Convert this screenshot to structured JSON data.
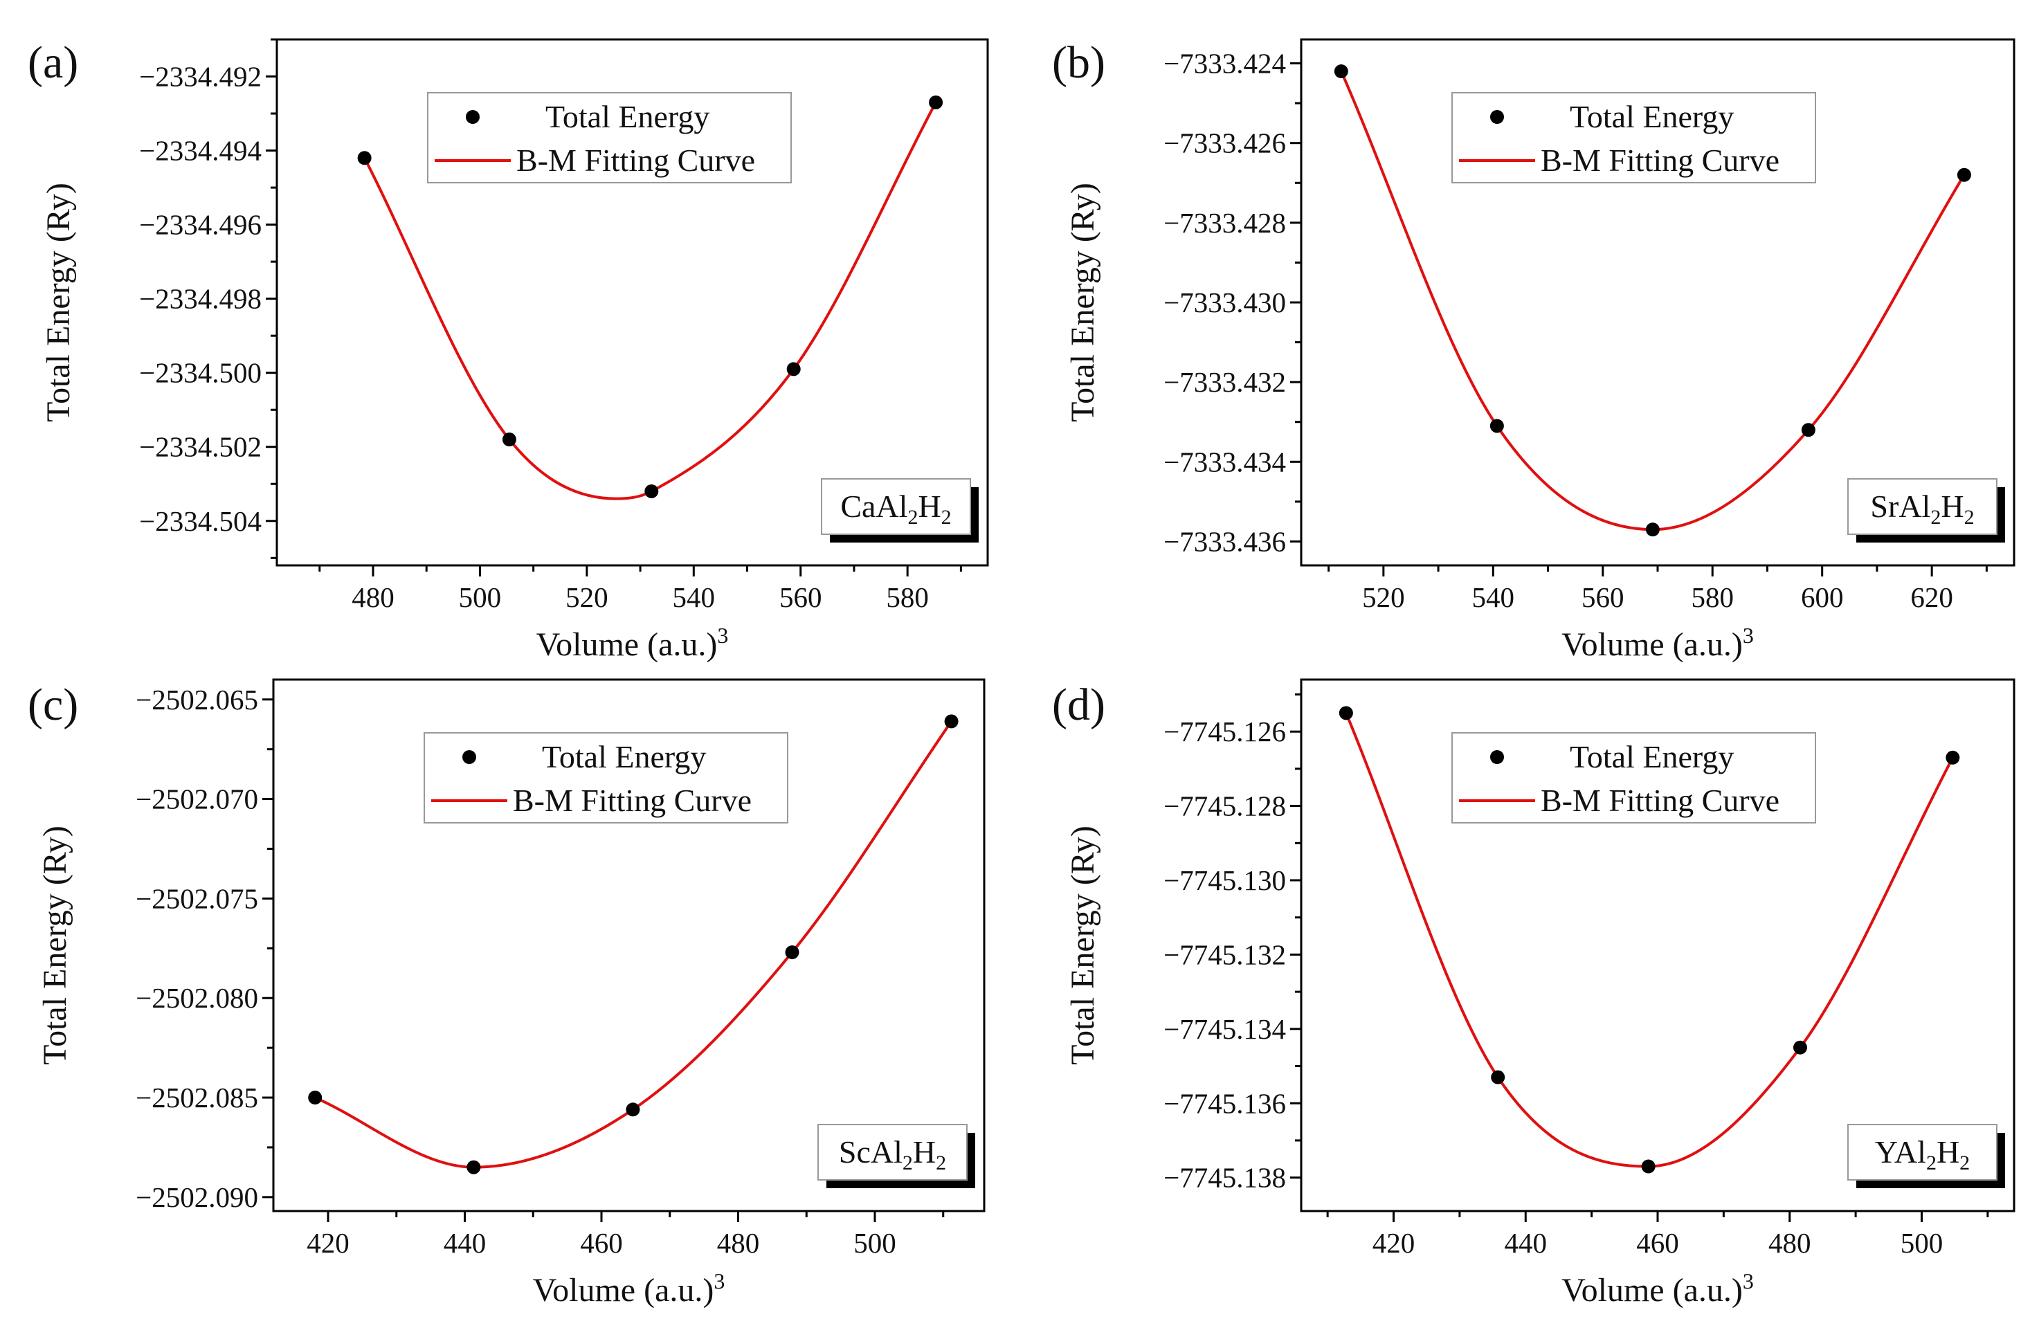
{
  "colors": {
    "fit_curve": "#e01010",
    "points": "#000000",
    "axes": "#000000",
    "label_shadow": "#000000"
  },
  "chart_data": [
    {
      "type": "scatter",
      "panel_label": "(a)",
      "compound": {
        "prefix": "CaAl",
        "sub1": "2",
        "mid": "H",
        "sub2": "2"
      },
      "xlabel": "Volume (a.u.)",
      "xlabel_sup": "3",
      "ylabel": "Total Energy (Ry)",
      "xlim": [
        462,
        595
      ],
      "ylim": [
        -2334.5052,
        -2334.491
      ],
      "xticks": [
        480,
        500,
        520,
        540,
        560,
        580
      ],
      "xtick_labels": [
        "480",
        "500",
        "520",
        "540",
        "560",
        "580"
      ],
      "yticks": [
        -2334.492,
        -2334.494,
        -2334.496,
        -2334.498,
        -2334.5,
        -2334.502,
        -2334.504
      ],
      "ytick_labels": [
        "−2334.492",
        "−2334.494",
        "−2334.496",
        "−2334.498",
        "−2334.500",
        "−2334.502",
        "−2334.504"
      ],
      "legend": [
        "Total Energy",
        "B-M Fitting Curve"
      ],
      "series": [
        {
          "name": "Total Energy",
          "x": [
            478.4,
            505.5,
            532.1,
            558.7,
            585.3
          ],
          "y": [
            -2334.4942,
            -2334.5018,
            -2334.5032,
            -2334.4999,
            -2334.4927
          ]
        }
      ],
      "fit": {
        "name": "B-M Fitting Curve",
        "x": [
          478.4,
          505.5,
          525.5,
          532.1,
          558.7,
          585.3
        ],
        "y": [
          -2334.4942,
          -2334.5018,
          -2334.5034,
          -2334.5032,
          -2334.4999,
          -2334.4927
        ]
      }
    },
    {
      "type": "scatter",
      "panel_label": "(b)",
      "compound": {
        "prefix": "SrAl",
        "sub1": "2",
        "mid": "H",
        "sub2": "2"
      },
      "xlabel": "Volume (a.u.)",
      "xlabel_sup": "3",
      "ylabel": "Total Energy (Ry)",
      "xlim": [
        505,
        635
      ],
      "ylim": [
        -7333.4366,
        -7333.4234
      ],
      "xticks": [
        520,
        540,
        560,
        580,
        600,
        620
      ],
      "xtick_labels": [
        "520",
        "540",
        "560",
        "580",
        "600",
        "620"
      ],
      "yticks": [
        -7333.424,
        -7333.426,
        -7333.428,
        -7333.43,
        -7333.432,
        -7333.434,
        -7333.436
      ],
      "ytick_labels": [
        "−7333.424",
        "−7333.426",
        "−7333.428",
        "−7333.430",
        "−7333.432",
        "−7333.434",
        "−7333.436"
      ],
      "legend": [
        "Total Energy",
        "B-M Fitting Curve"
      ],
      "series": [
        {
          "name": "Total Energy",
          "x": [
            512.3,
            540.7,
            569.1,
            597.5,
            625.9
          ],
          "y": [
            -7333.4242,
            -7333.4331,
            -7333.4357,
            -7333.4332,
            -7333.4268
          ]
        }
      ],
      "fit": {
        "name": "B-M Fitting Curve",
        "x": [
          512.3,
          540.7,
          569.1,
          597.5,
          625.9
        ],
        "y": [
          -7333.4242,
          -7333.4331,
          -7333.4357,
          -7333.4332,
          -7333.4268
        ]
      }
    },
    {
      "type": "scatter",
      "panel_label": "(c)",
      "compound": {
        "prefix": "ScAl",
        "sub1": "2",
        "mid": "H",
        "sub2": "2"
      },
      "xlabel": "Volume (a.u.)",
      "xlabel_sup": "3",
      "ylabel": "Total Energy (Ry)",
      "xlim": [
        412,
        516
      ],
      "ylim": [
        -2502.0907,
        -2502.064
      ],
      "xticks": [
        420,
        440,
        460,
        480,
        500
      ],
      "xtick_labels": [
        "420",
        "440",
        "460",
        "480",
        "500"
      ],
      "yticks": [
        -2502.065,
        -2502.07,
        -2502.075,
        -2502.08,
        -2502.085,
        -2502.09
      ],
      "ytick_labels": [
        "−2502.065",
        "−2502.070",
        "−2502.075",
        "−2502.080",
        "−2502.085",
        "−2502.090"
      ],
      "legend": [
        "Total Energy",
        "B-M Fitting Curve"
      ],
      "series": [
        {
          "name": "Total Energy",
          "x": [
            418.1,
            441.3,
            464.6,
            487.9,
            511.2
          ],
          "y": [
            -2502.085,
            -2502.0885,
            -2502.0856,
            -2502.0777,
            -2502.0661
          ]
        }
      ],
      "fit": {
        "name": "B-M Fitting Curve",
        "x": [
          418.1,
          441.3,
          464.6,
          487.9,
          511.2
        ],
        "y": [
          -2502.085,
          -2502.0885,
          -2502.0856,
          -2502.0777,
          -2502.0661
        ]
      }
    },
    {
      "type": "scatter",
      "panel_label": "(d)",
      "compound": {
        "prefix": "YAl",
        "sub1": "2",
        "mid": "H",
        "sub2": "2"
      },
      "xlabel": "Volume (a.u.)",
      "xlabel_sup": "3",
      "ylabel": "Total Energy (Ry)",
      "xlim": [
        406,
        514
      ],
      "ylim": [
        -7745.1389,
        -7745.1246
      ],
      "xticks": [
        420,
        440,
        460,
        480,
        500
      ],
      "xtick_labels": [
        "420",
        "440",
        "460",
        "480",
        "500"
      ],
      "yticks": [
        -7745.126,
        -7745.128,
        -7745.13,
        -7745.132,
        -7745.134,
        -7745.136,
        -7745.138
      ],
      "ytick_labels": [
        "−7745.126",
        "−7745.128",
        "−7745.130",
        "−7745.132",
        "−7745.134",
        "−7745.136",
        "−7745.138"
      ],
      "legend": [
        "Total Energy",
        "B-M Fitting Curve"
      ],
      "series": [
        {
          "name": "Total Energy",
          "x": [
            412.8,
            435.8,
            458.6,
            481.6,
            504.7
          ],
          "y": [
            -7745.1255,
            -7745.1353,
            -7745.1377,
            -7745.1345,
            -7745.1267
          ]
        }
      ],
      "fit": {
        "name": "B-M Fitting Curve",
        "x": [
          412.8,
          435.8,
          458.6,
          481.6,
          504.7
        ],
        "y": [
          -7745.1255,
          -7745.1353,
          -7745.1377,
          -7745.1345,
          -7745.1267
        ]
      }
    }
  ]
}
